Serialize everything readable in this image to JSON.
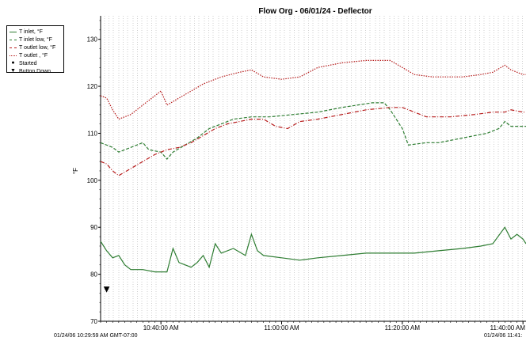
{
  "chart_data": {
    "type": "line",
    "title": "Flow Org - 06/01/24 - Deflector",
    "ylabel": "°F",
    "xlabel": "",
    "ylim": [
      70,
      135
    ],
    "y_ticks": [
      70,
      80,
      90,
      100,
      110,
      120,
      130
    ],
    "x_range_minutes": [
      0,
      70.5
    ],
    "x_ticks": [
      {
        "label": "10:40:00 AM",
        "minute": 10.0
      },
      {
        "label": "11:00:00 AM",
        "minute": 30.0
      },
      {
        "label": "11:20:00 AM",
        "minute": 50.0
      },
      {
        "label": "11:40:00 AM",
        "minute": 70.0
      }
    ],
    "start_label": "01/24/06 10:29:59 AM GMT-07:00",
    "end_label": "01/24/06 11:41:",
    "series": [
      {
        "name": "T inlet, °F",
        "color": "#2e7d32",
        "dash": "solid",
        "points": [
          [
            0,
            87
          ],
          [
            1,
            85
          ],
          [
            2,
            83.5
          ],
          [
            3,
            84
          ],
          [
            4,
            82
          ],
          [
            5,
            81
          ],
          [
            7,
            81
          ],
          [
            9,
            80.5
          ],
          [
            11,
            80.5
          ],
          [
            12,
            85.5
          ],
          [
            13,
            82.5
          ],
          [
            15,
            81.5
          ],
          [
            16,
            82.5
          ],
          [
            17,
            84
          ],
          [
            18,
            81.5
          ],
          [
            19,
            86.5
          ],
          [
            20,
            84.5
          ],
          [
            22,
            85.5
          ],
          [
            24,
            84
          ],
          [
            25,
            88.5
          ],
          [
            26,
            85
          ],
          [
            27,
            84
          ],
          [
            30,
            83.5
          ],
          [
            33,
            83
          ],
          [
            36,
            83.5
          ],
          [
            40,
            84
          ],
          [
            44,
            84.5
          ],
          [
            48,
            84.5
          ],
          [
            52,
            84.5
          ],
          [
            56,
            85
          ],
          [
            60,
            85.5
          ],
          [
            63,
            86
          ],
          [
            65,
            86.5
          ],
          [
            67,
            90
          ],
          [
            68,
            87.5
          ],
          [
            69,
            88.5
          ],
          [
            70,
            87.5
          ],
          [
            70.5,
            86.5
          ]
        ]
      },
      {
        "name": "T inlet low, °F",
        "color": "#2e7d32",
        "dash": "dashed",
        "points": [
          [
            0,
            108
          ],
          [
            2,
            107
          ],
          [
            3,
            106
          ],
          [
            5,
            107
          ],
          [
            7,
            108
          ],
          [
            8,
            106.5
          ],
          [
            10,
            106
          ],
          [
            11,
            104.5
          ],
          [
            12,
            106
          ],
          [
            14,
            107.5
          ],
          [
            16,
            109
          ],
          [
            18,
            111
          ],
          [
            20,
            112
          ],
          [
            22,
            113
          ],
          [
            25,
            113.5
          ],
          [
            28,
            113.5
          ],
          [
            32,
            114
          ],
          [
            36,
            114.5
          ],
          [
            40,
            115.5
          ],
          [
            45,
            116.5
          ],
          [
            47,
            116.5
          ],
          [
            48,
            115
          ],
          [
            50,
            111
          ],
          [
            51,
            107.5
          ],
          [
            54,
            108
          ],
          [
            56,
            108
          ],
          [
            58,
            108.5
          ],
          [
            60,
            109
          ],
          [
            62,
            109.5
          ],
          [
            64,
            110
          ],
          [
            66,
            111
          ],
          [
            67,
            112.5
          ],
          [
            68,
            111.5
          ],
          [
            70,
            111.5
          ],
          [
            70.5,
            111.5
          ]
        ]
      },
      {
        "name": "T outlet low, °F",
        "color": "#b71c1c",
        "dash": "dashdot",
        "points": [
          [
            0,
            104
          ],
          [
            1,
            103.5
          ],
          [
            2,
            102
          ],
          [
            3,
            101
          ],
          [
            5,
            102.5
          ],
          [
            7,
            104
          ],
          [
            9,
            105.5
          ],
          [
            11,
            106.5
          ],
          [
            13,
            107
          ],
          [
            15,
            108
          ],
          [
            17,
            109.5
          ],
          [
            19,
            111
          ],
          [
            21,
            112
          ],
          [
            23,
            112.5
          ],
          [
            25,
            113
          ],
          [
            27,
            113
          ],
          [
            29,
            111.5
          ],
          [
            31,
            111
          ],
          [
            33,
            112.5
          ],
          [
            36,
            113
          ],
          [
            40,
            114
          ],
          [
            44,
            115
          ],
          [
            48,
            115.5
          ],
          [
            50,
            115.5
          ],
          [
            52,
            114.5
          ],
          [
            54,
            113.5
          ],
          [
            58,
            113.5
          ],
          [
            62,
            114
          ],
          [
            65,
            114.5
          ],
          [
            67,
            114.5
          ],
          [
            68,
            115
          ],
          [
            70,
            114.5
          ],
          [
            70.5,
            114.5
          ]
        ]
      },
      {
        "name": "T outlet , °F",
        "color": "#b71c1c",
        "dash": "dotted",
        "points": [
          [
            0,
            118
          ],
          [
            1,
            117.5
          ],
          [
            2,
            115
          ],
          [
            3,
            113
          ],
          [
            5,
            114
          ],
          [
            7,
            116
          ],
          [
            9,
            118
          ],
          [
            10,
            119
          ],
          [
            11,
            116
          ],
          [
            13,
            117.5
          ],
          [
            15,
            119
          ],
          [
            17,
            120.5
          ],
          [
            20,
            122
          ],
          [
            23,
            123
          ],
          [
            25,
            123.5
          ],
          [
            27,
            122
          ],
          [
            30,
            121.5
          ],
          [
            33,
            122
          ],
          [
            36,
            124
          ],
          [
            40,
            125
          ],
          [
            44,
            125.5
          ],
          [
            48,
            125.5
          ],
          [
            50,
            124
          ],
          [
            52,
            122.5
          ],
          [
            55,
            122
          ],
          [
            60,
            122
          ],
          [
            63,
            122.5
          ],
          [
            65,
            123
          ],
          [
            67,
            124.5
          ],
          [
            68,
            123.5
          ],
          [
            70,
            122.5
          ],
          [
            70.5,
            122.5
          ]
        ]
      }
    ],
    "events": [
      {
        "name": "Started",
        "marker": "●"
      },
      {
        "name": "Button Down",
        "marker": "▼",
        "minute": 1.0,
        "value": 77
      }
    ],
    "grid": "vertical dotted lines",
    "legend_position": "top-left, outside plot"
  }
}
